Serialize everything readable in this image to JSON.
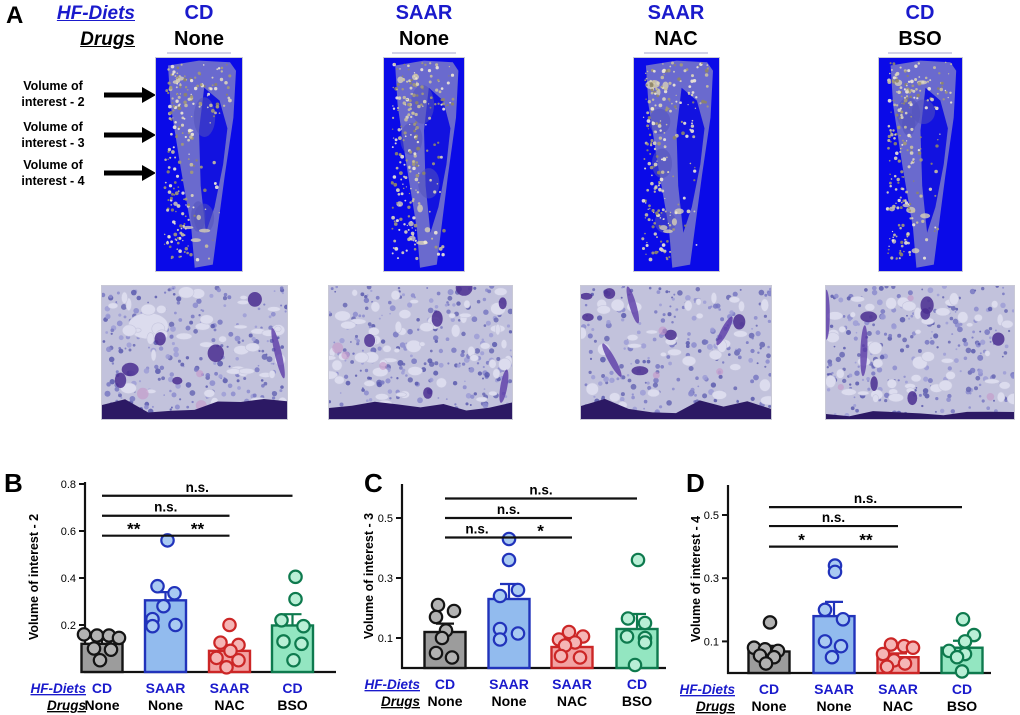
{
  "figure": {
    "panel_a": {
      "label": "A",
      "diets_row_label": "HF-Diets",
      "drugs_row_label": "Drugs",
      "columns": [
        {
          "diet": "CD",
          "drug": "None"
        },
        {
          "diet": "SAAR",
          "drug": "None"
        },
        {
          "diet": "SAAR",
          "drug": "NAC"
        },
        {
          "diet": "CD",
          "drug": "BSO"
        }
      ],
      "voi_annotations": [
        {
          "line1": "Volume of",
          "line2": "interest - 2"
        },
        {
          "line1": "Volume of",
          "line2": "interest - 3"
        },
        {
          "line1": "Volume of",
          "line2": "interest - 4"
        }
      ]
    },
    "colors": {
      "diet_text": "#1a1acc",
      "microct_background": "#0a0ae8",
      "groups": {
        "gray": {
          "fill": "#9c9c9c",
          "stroke": "#141414",
          "point_fill": "#b2b2b2"
        },
        "blue": {
          "fill": "#92bbee",
          "stroke": "#2133bb",
          "point_fill": "#a9caf2"
        },
        "red": {
          "fill": "#f2a3a3",
          "stroke": "#cc2626",
          "point_fill": "#f5b5b5"
        },
        "green": {
          "fill": "#93e6c1",
          "stroke": "#0e7a4e",
          "point_fill": "#b9efd6"
        }
      }
    }
  },
  "chart_data": [
    {
      "type": "bar",
      "panel_letter": "B",
      "ylabel": "Volume of interest - 2",
      "ylim": [
        0,
        0.8
      ],
      "yticks": [
        0.2,
        0.4,
        0.6,
        0.8
      ],
      "xrow_labels": {
        "diets": "HF-Diets",
        "drugs": "Drugs"
      },
      "categories": [
        {
          "diet": "CD",
          "drug": "None",
          "color": "gray"
        },
        {
          "diet": "SAAR",
          "drug": "None",
          "color": "blue"
        },
        {
          "diet": "SAAR",
          "drug": "NAC",
          "color": "red"
        },
        {
          "diet": "CD",
          "drug": "BSO",
          "color": "green"
        }
      ],
      "bars": [
        {
          "mean": 0.12,
          "sem": 0.018,
          "points": [
            [
              0.16,
              -18
            ],
            [
              0.155,
              -5
            ],
            [
              0.155,
              7
            ],
            [
              0.145,
              17
            ],
            [
              0.1,
              -8
            ],
            [
              0.095,
              9
            ],
            [
              0.05,
              -2
            ]
          ]
        },
        {
          "mean": 0.305,
          "sem": 0.035,
          "points": [
            [
              0.56,
              2
            ],
            [
              0.365,
              -8
            ],
            [
              0.335,
              9
            ],
            [
              0.28,
              -2
            ],
            [
              0.225,
              -13
            ],
            [
              0.195,
              -13
            ],
            [
              0.2,
              10
            ]
          ]
        },
        {
          "mean": 0.09,
          "sem": 0.02,
          "points": [
            [
              0.2,
              0
            ],
            [
              0.125,
              -9
            ],
            [
              0.115,
              9
            ],
            [
              0.09,
              1
            ],
            [
              0.06,
              -13
            ],
            [
              0.05,
              9
            ],
            [
              0.02,
              -3
            ]
          ]
        },
        {
          "mean": 0.198,
          "sem": 0.048,
          "points": [
            [
              0.405,
              3
            ],
            [
              0.31,
              3
            ],
            [
              0.22,
              -11
            ],
            [
              0.195,
              11
            ],
            [
              0.13,
              -9
            ],
            [
              0.12,
              9
            ],
            [
              0.05,
              1
            ]
          ]
        }
      ],
      "significance": [
        {
          "from": 0,
          "to": 1,
          "label": "**",
          "height": 0.58
        },
        {
          "from": 1,
          "to": 2,
          "label": "**",
          "height": 0.58
        },
        {
          "from": 0,
          "to": 2,
          "label": "n.s.",
          "height": 0.665
        },
        {
          "from": 0,
          "to": 3,
          "label": "n.s.",
          "height": 0.75
        }
      ]
    },
    {
      "type": "bar",
      "panel_letter": "C",
      "ylabel": "Volume of interest - 3",
      "ylim": [
        0,
        0.6
      ],
      "yticks": [
        0.1,
        0.3,
        0.5
      ],
      "xrow_labels": {
        "diets": "HF-Diets",
        "drugs": "Drugs"
      },
      "categories": [
        {
          "diet": "CD",
          "drug": "None",
          "color": "gray"
        },
        {
          "diet": "SAAR",
          "drug": "None",
          "color": "blue"
        },
        {
          "diet": "SAAR",
          "drug": "NAC",
          "color": "red"
        },
        {
          "diet": "CD",
          "drug": "BSO",
          "color": "green"
        }
      ],
      "bars": [
        {
          "mean": 0.12,
          "sem": 0.028,
          "points": [
            [
              0.21,
              -7
            ],
            [
              0.19,
              9
            ],
            [
              0.17,
              -9
            ],
            [
              0.125,
              1
            ],
            [
              0.1,
              -3
            ],
            [
              0.05,
              -9
            ],
            [
              0.035,
              7
            ]
          ]
        },
        {
          "mean": 0.23,
          "sem": 0.05,
          "points": [
            [
              0.43,
              0
            ],
            [
              0.36,
              0
            ],
            [
              0.26,
              9
            ],
            [
              0.24,
              -9
            ],
            [
              0.13,
              -9
            ],
            [
              0.115,
              9
            ],
            [
              0.095,
              -9
            ]
          ]
        },
        {
          "mean": 0.07,
          "sem": 0.018,
          "points": [
            [
              0.12,
              -3
            ],
            [
              0.105,
              11
            ],
            [
              0.095,
              -13
            ],
            [
              0.085,
              3
            ],
            [
              0.075,
              -7
            ],
            [
              0.04,
              -11
            ],
            [
              0.035,
              8
            ]
          ]
        },
        {
          "mean": 0.13,
          "sem": 0.05,
          "points": [
            [
              0.36,
              1
            ],
            [
              0.165,
              -9
            ],
            [
              0.15,
              8
            ],
            [
              0.105,
              -10
            ],
            [
              0.1,
              8
            ],
            [
              0.085,
              8
            ],
            [
              0.01,
              -2
            ]
          ]
        }
      ],
      "significance": [
        {
          "from": 0,
          "to": 1,
          "label": "n.s.",
          "height": 0.435
        },
        {
          "from": 1,
          "to": 2,
          "label": "*",
          "height": 0.435
        },
        {
          "from": 0,
          "to": 2,
          "label": "n.s.",
          "height": 0.5
        },
        {
          "from": 0,
          "to": 3,
          "label": "n.s.",
          "height": 0.565
        }
      ]
    },
    {
      "type": "bar",
      "panel_letter": "D",
      "ylabel": "Volume of interest - 4",
      "ylim": [
        0,
        0.6
      ],
      "yticks": [
        0.1,
        0.3,
        0.5
      ],
      "xrow_labels": {
        "diets": "HF-Diets",
        "drugs": "Drugs"
      },
      "categories": [
        {
          "diet": "CD",
          "drug": "None",
          "color": "gray"
        },
        {
          "diet": "SAAR",
          "drug": "None",
          "color": "blue"
        },
        {
          "diet": "SAAR",
          "drug": "NAC",
          "color": "red"
        },
        {
          "diet": "CD",
          "drug": "BSO",
          "color": "green"
        }
      ],
      "bars": [
        {
          "mean": 0.068,
          "sem": 0.018,
          "points": [
            [
              0.16,
              1
            ],
            [
              0.08,
              -15
            ],
            [
              0.075,
              -4
            ],
            [
              0.07,
              9
            ],
            [
              0.055,
              -9
            ],
            [
              0.05,
              5
            ],
            [
              0.03,
              -3
            ]
          ]
        },
        {
          "mean": 0.18,
          "sem": 0.045,
          "points": [
            [
              0.34,
              1
            ],
            [
              0.32,
              1
            ],
            [
              0.2,
              -9
            ],
            [
              0.17,
              9
            ],
            [
              0.1,
              -9
            ],
            [
              0.085,
              7
            ],
            [
              0.05,
              -2
            ]
          ]
        },
        {
          "mean": 0.05,
          "sem": 0.012,
          "points": [
            [
              0.09,
              -7
            ],
            [
              0.085,
              6
            ],
            [
              0.08,
              15
            ],
            [
              0.06,
              -15
            ],
            [
              0.04,
              -4
            ],
            [
              0.03,
              7
            ],
            [
              0.02,
              -11
            ]
          ]
        },
        {
          "mean": 0.08,
          "sem": 0.022,
          "points": [
            [
              0.17,
              1
            ],
            [
              0.12,
              12
            ],
            [
              0.1,
              3
            ],
            [
              0.07,
              -13
            ],
            [
              0.06,
              3
            ],
            [
              0.05,
              -5
            ],
            [
              0.005,
              0
            ]
          ]
        }
      ],
      "significance": [
        {
          "from": 0,
          "to": 1,
          "label": "*",
          "height": 0.4
        },
        {
          "from": 1,
          "to": 2,
          "label": "**",
          "height": 0.4
        },
        {
          "from": 0,
          "to": 2,
          "label": "n.s.",
          "height": 0.465
        },
        {
          "from": 0,
          "to": 3,
          "label": "n.s.",
          "height": 0.525
        }
      ]
    }
  ]
}
